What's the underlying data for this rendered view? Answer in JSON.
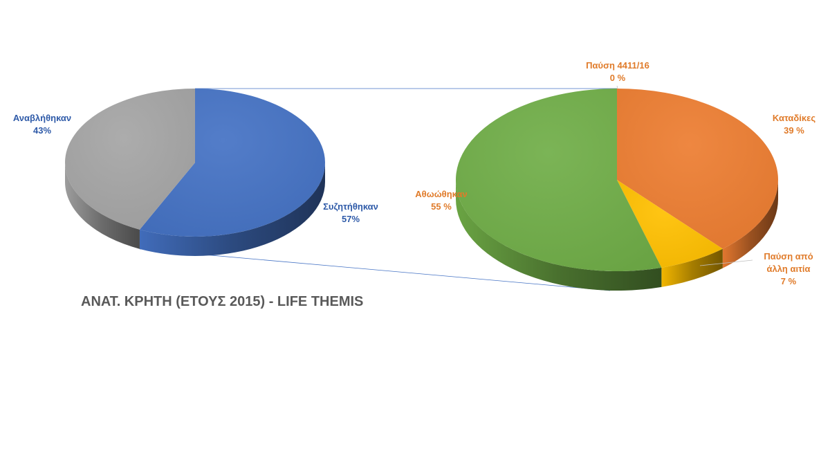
{
  "chart_data": {
    "type": "pie",
    "subtype": "3d-pie-of-pie",
    "title": "ΑΝΑΤ. ΚΡΗΤΗ (ΕΤΟΥΣ 2015) - LIFE THEMIS",
    "primary": {
      "slices": [
        {
          "label": "Συζητήθηκαν",
          "value": 57,
          "value_label": "57%",
          "color": "#4472c4"
        },
        {
          "label": "Αναβλήθηκαν",
          "value": 43,
          "value_label": "43%",
          "color": "#a5a5a5"
        }
      ],
      "label_color": "#2e5aa8"
    },
    "secondary": {
      "slices": [
        {
          "label": "Καταδίκες",
          "value": 39,
          "value_label": "39 %",
          "color": "#ed7d31"
        },
        {
          "label": "Παύση από άλλη αιτία",
          "value": 7,
          "value_label": "7 %",
          "color": "#ffc000"
        },
        {
          "label": "Αθωώθηκαν",
          "value": 55,
          "value_label": "55 %",
          "color": "#70ad47"
        },
        {
          "label": "Παύση 4411/16",
          "value": 0,
          "value_label": "0 %",
          "color": "#5b9bd5"
        }
      ],
      "label_color": "#e07b2a"
    },
    "connector_color": "#4472c4"
  },
  "labels": {
    "anavlithikan": {
      "name": "Αναβλήθηκαν",
      "pct": "43%"
    },
    "syzitithikan": {
      "name": "Συζητήθηκαν",
      "pct": "57%"
    },
    "pafsi4411": {
      "name": "Παύση 4411/16",
      "pct": "0 %"
    },
    "katadikes": {
      "name": "Καταδίκες",
      "pct": "39 %"
    },
    "athoothikan": {
      "name": "Αθωώθηκαν",
      "pct": "55 %"
    },
    "pafsi_alli_line1": "Παύση από",
    "pafsi_alli_line2": "άλλη αιτία",
    "pafsi_alli_pct": "7 %"
  }
}
